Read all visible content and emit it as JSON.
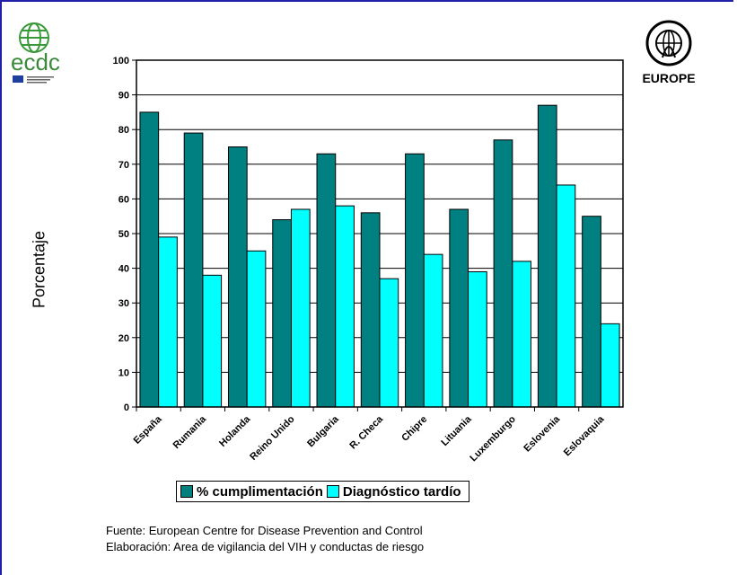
{
  "logos": {
    "left": {
      "icon": "ecdc-logo-icon",
      "text": "ecdc"
    },
    "right": {
      "icon": "who-emblem-icon",
      "text": "EUROPE",
      "seal_text": "WORLD HEALTH ORGANIZATION"
    }
  },
  "colors": {
    "series1": "#008080",
    "series2": "#00ffff",
    "frame": "#1f1fa8"
  },
  "chart_data": {
    "type": "bar",
    "categories": [
      "España",
      "Rumania",
      "Holanda",
      "Reino Unido",
      "Bulgaria",
      "R. Checa",
      "Chipre",
      "Lituania",
      "Luxemburgo",
      "Eslovenia",
      "Eslovaquia"
    ],
    "series": [
      {
        "name": "% cumplimentación",
        "values": [
          85,
          79,
          75,
          54,
          73,
          56,
          73,
          57,
          77,
          87,
          55
        ]
      },
      {
        "name": "Diagnóstico tardío",
        "values": [
          49,
          38,
          45,
          57,
          58,
          37,
          44,
          39,
          42,
          64,
          24
        ]
      }
    ],
    "ylabel": "Porcentaje",
    "ylim": [
      0,
      100
    ],
    "yticks": [
      0,
      10,
      20,
      30,
      40,
      50,
      60,
      70,
      80,
      90,
      100
    ],
    "grid": true,
    "legend": "bottom"
  },
  "footer": {
    "source": "Fuente: European Centre for Disease Prevention and Control",
    "elaboration": "Elaboración: Area de vigilancia del VIH y conductas de riesgo"
  }
}
